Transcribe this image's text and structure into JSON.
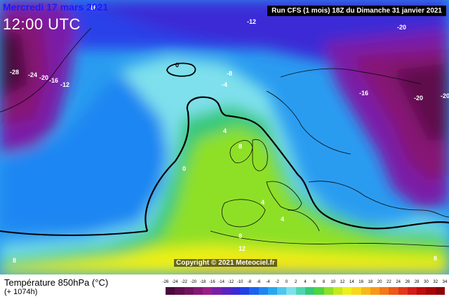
{
  "title": {
    "date": "Mercredi 17 mars 2021",
    "time": "12:00 UTC",
    "run_info": "Run CFS (1 mois) 18Z du Dimanche 31 janvier 2021"
  },
  "copyright": "Copyright © 2021 Meteociel.fr",
  "footer": {
    "variable": "Température 850hPa (°C)",
    "lead_time": "(+ 1074h)"
  },
  "legend": {
    "ticks": [
      "-26",
      "-24",
      "-22",
      "-20",
      "-18",
      "-16",
      "-14",
      "-12",
      "-10",
      "-8",
      "-6",
      "-4",
      "-2",
      "0",
      "2",
      "4",
      "6",
      "8",
      "10",
      "12",
      "14",
      "16",
      "18",
      "20",
      "22",
      "24",
      "26",
      "28",
      "30",
      "32",
      "34"
    ],
    "colors": [
      "#4a0a3a",
      "#5e0f4c",
      "#72135f",
      "#861875",
      "#9b1d8c",
      "#7a1ea8",
      "#5a22c0",
      "#3a2ad6",
      "#2040e8",
      "#1c62f0",
      "#1e86f2",
      "#26a8f0",
      "#4cc8ee",
      "#7ee0ec",
      "#4ed6b0",
      "#36c87a",
      "#4cd640",
      "#8ee026",
      "#c4ea1a",
      "#eef018",
      "#f8d818",
      "#f8b818",
      "#f89818",
      "#f47818",
      "#ee5818",
      "#e43818",
      "#d41c18",
      "#c00c0c",
      "#a80606",
      "#8c0404"
    ]
  },
  "isotherm_labels": [
    {
      "text": "-16",
      "color": "#ffffff"
    },
    {
      "text": "-12",
      "color": "#ffffff"
    },
    {
      "text": "-20",
      "color": "#ffffff"
    },
    {
      "text": "-28",
      "color": "#ffffff"
    },
    {
      "text": "-24",
      "color": "#ffffff"
    },
    {
      "text": "-20",
      "color": "#ffffff"
    },
    {
      "text": "-16",
      "color": "#ffffff"
    },
    {
      "text": "-12",
      "color": "#ffffff"
    },
    {
      "text": "0",
      "color": "#000000"
    },
    {
      "text": "-8",
      "color": "#ffffff"
    },
    {
      "text": "-4",
      "color": "#ffffff"
    },
    {
      "text": "-16",
      "color": "#ffffff"
    },
    {
      "text": "-20",
      "color": "#ffffff"
    },
    {
      "text": "-20",
      "color": "#ffffff"
    },
    {
      "text": "4",
      "color": "#ffffff"
    },
    {
      "text": "8",
      "color": "#ffffff"
    },
    {
      "text": "0",
      "color": "#ffffff"
    },
    {
      "text": "4",
      "color": "#ffffff"
    },
    {
      "text": "4",
      "color": "#ffffff"
    },
    {
      "text": "8",
      "color": "#ffffff"
    },
    {
      "text": "12",
      "color": "#ffffff"
    },
    {
      "text": "8",
      "color": "#ffffff"
    },
    {
      "text": "8",
      "color": "#ffffff"
    }
  ]
}
